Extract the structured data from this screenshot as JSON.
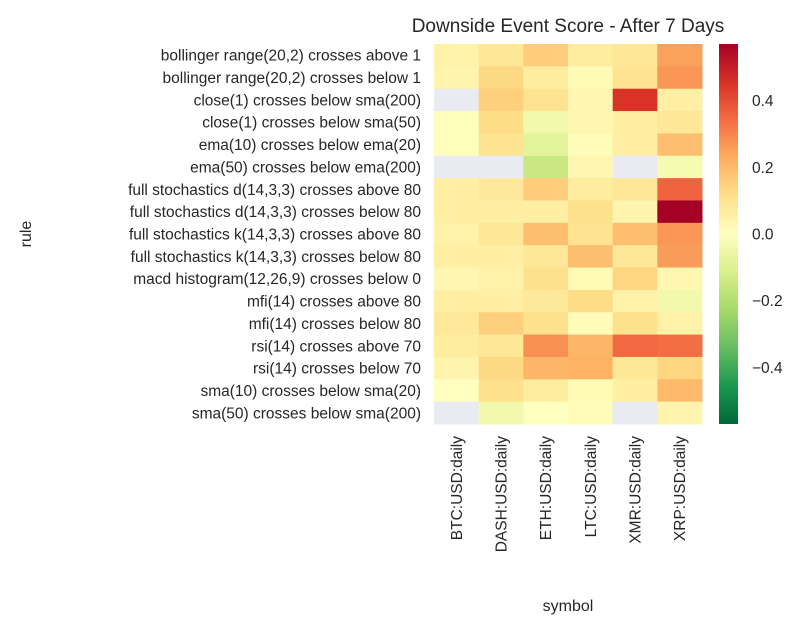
{
  "chart_data": {
    "type": "heatmap",
    "title": "Downside Event Score - After 7 Days",
    "xlabel": "symbol",
    "ylabel": "rule",
    "colormap": "RdYlGn_r",
    "vmin": -0.57,
    "vmax": 0.57,
    "missing_color": "#eaeaf2",
    "colorbar_ticks": [
      0.4,
      0.2,
      0.0,
      -0.2,
      -0.4
    ],
    "colorbar_tick_labels": [
      "0.4",
      "0.2",
      "0.0",
      "−0.2",
      "−0.4"
    ],
    "columns": [
      "BTC:USD:daily",
      "DASH:USD:daily",
      "ETH:USD:daily",
      "LTC:USD:daily",
      "XMR:USD:daily",
      "XRP:USD:daily"
    ],
    "rows": [
      "bollinger range(20,2) crosses above 1",
      "bollinger range(20,2) crosses below 1",
      "close(1) crosses below sma(200)",
      "close(1) crosses below sma(50)",
      "ema(10) crosses below ema(20)",
      "ema(50) crosses below ema(200)",
      "full stochastics d(14,3,3) crosses above 80",
      "full stochastics d(14,3,3) crosses below 80",
      "full stochastics k(14,3,3) crosses above 80",
      "full stochastics k(14,3,3) crosses below 80",
      "macd histogram(12,26,9) crosses below 0",
      "mfi(14) crosses above 80",
      "mfi(14) crosses below 80",
      "rsi(14) crosses above 70",
      "rsi(14) crosses below 70",
      "sma(10) crosses below sma(20)",
      "sma(50) crosses below sma(200)"
    ],
    "values": [
      [
        0.05,
        0.09,
        0.16,
        0.07,
        0.09,
        0.25
      ],
      [
        0.04,
        0.13,
        0.07,
        0.02,
        0.1,
        0.27
      ],
      [
        null,
        0.15,
        0.1,
        0.03,
        0.45,
        0.06
      ],
      [
        -0.01,
        0.12,
        -0.04,
        0.03,
        0.06,
        0.09
      ],
      [
        -0.01,
        0.1,
        -0.08,
        0.01,
        0.06,
        0.19
      ],
      [
        null,
        null,
        -0.15,
        0.03,
        null,
        -0.03
      ],
      [
        0.06,
        0.08,
        0.16,
        0.07,
        0.09,
        0.36
      ],
      [
        0.06,
        0.06,
        0.06,
        0.11,
        0.04,
        0.57
      ],
      [
        0.05,
        0.09,
        0.19,
        0.1,
        0.19,
        0.27
      ],
      [
        0.06,
        0.06,
        0.09,
        0.19,
        0.09,
        0.26
      ],
      [
        0.03,
        0.05,
        0.11,
        0.02,
        0.14,
        0.03
      ],
      [
        0.06,
        0.06,
        0.08,
        0.12,
        0.05,
        -0.04
      ],
      [
        0.08,
        0.15,
        0.11,
        0.01,
        0.11,
        0.05
      ],
      [
        0.07,
        0.09,
        0.28,
        0.21,
        0.35,
        0.34
      ],
      [
        0.04,
        0.13,
        0.21,
        0.22,
        0.09,
        0.14
      ],
      [
        0.0,
        0.11,
        0.07,
        0.02,
        0.06,
        0.2
      ],
      [
        null,
        -0.04,
        0.0,
        0.01,
        null,
        0.04
      ]
    ]
  }
}
